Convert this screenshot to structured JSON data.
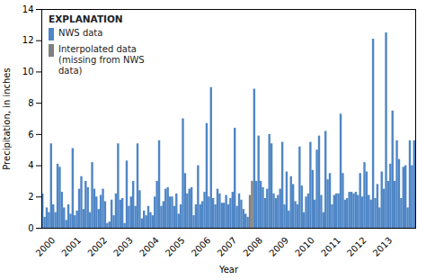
{
  "chart_data": {
    "type": "bar",
    "xlabel": "Year",
    "ylabel": "Precipitation, in inches",
    "ylim": [
      0,
      14
    ],
    "yticks": [
      0,
      2,
      4,
      6,
      8,
      10,
      12,
      14
    ],
    "grid": false,
    "legend": "upper left",
    "legend_title": "EXPLANATION",
    "categories": [
      null,
      null,
      null,
      null,
      null,
      "2000",
      null,
      null,
      null,
      null,
      null,
      null,
      null,
      null,
      null,
      null,
      null,
      "2001",
      null,
      null,
      null,
      null,
      null,
      null,
      null,
      null,
      null,
      null,
      null,
      "2002",
      null,
      null,
      null,
      null,
      null,
      null,
      null,
      null,
      null,
      null,
      null,
      "2003",
      null,
      null,
      null,
      null,
      null,
      null,
      null,
      null,
      null,
      null,
      null,
      "2004",
      null,
      null,
      null,
      null,
      null,
      null,
      null,
      null,
      null,
      null,
      null,
      "2005",
      null,
      null,
      null,
      null,
      null,
      null,
      null,
      null,
      null,
      null,
      null,
      "2006",
      null,
      null,
      null,
      null,
      null,
      null,
      null,
      null,
      null,
      null,
      null,
      "2007",
      null,
      null,
      null,
      null,
      null,
      null,
      null,
      null,
      null,
      null,
      null,
      "2008",
      null,
      null,
      null,
      null,
      null,
      null,
      null,
      null,
      null,
      null,
      null,
      "2009",
      null,
      null,
      null,
      null,
      null,
      null,
      null,
      null,
      null,
      null,
      null,
      "2010",
      null,
      null,
      null,
      null,
      null,
      null,
      null,
      null,
      null,
      null,
      null,
      "2011",
      null,
      null,
      null,
      null,
      null,
      null,
      null,
      null,
      null,
      null,
      null,
      "2012",
      null,
      null,
      null,
      null,
      null,
      null,
      null,
      null,
      null,
      null,
      null,
      "2013",
      null,
      null,
      null,
      null,
      null,
      null,
      null,
      null,
      null,
      null,
      null
    ],
    "series": [
      {
        "name": "NWS data",
        "color": "#4f86c6",
        "values": [
          2.2,
          0.7,
          1.3,
          1.0,
          5.4,
          1.5,
          1.0,
          4.1,
          3.9,
          2.3,
          1.3,
          0.5,
          1.5,
          0.9,
          5.1,
          0.8,
          1.1,
          2.5,
          3.3,
          1.2,
          3.0,
          2.6,
          1.0,
          4.2,
          2.5,
          2.0,
          1.2,
          2.1,
          2.5,
          1.7,
          0.3,
          0.4,
          1.8,
          0.8,
          2.2,
          5.4,
          1.8,
          1.9,
          0.3,
          4.3,
          1.4,
          2.0,
          3.0,
          1.4,
          5.4,
          2.4,
          0.6,
          1.1,
          0.8,
          1.4,
          1.0,
          0.8,
          2.0,
          3.0,
          5.6,
          1.4,
          1.7,
          2.5,
          2.6,
          2.0,
          2.0,
          1.4,
          2.2,
          0.9,
          1.5,
          7.0,
          3.5,
          2.2,
          2.5,
          2.6,
          0.8,
          1.5,
          4.0,
          1.5,
          1.7,
          2.3,
          6.7,
          2.0,
          9.0,
          1.9,
          1.5,
          2.5,
          2.2,
          1.6,
          1.6,
          2.1,
          1.5,
          1.9,
          2.3,
          6.4,
          1.4,
          2.2,
          1.8,
          1.2,
          0.9,
          0.7,
          null,
          null,
          8.9,
          3.0,
          5.9,
          3.0,
          2.6,
          1.9,
          2.5,
          6.0,
          5.4,
          2.2,
          1.9,
          2.1,
          2.5,
          5.5,
          1.5,
          3.6,
          1.1,
          3.3,
          2.8,
          1.7,
          1.5,
          5.2,
          2.7,
          1.0,
          2.0,
          2.2,
          5.5,
          3.7,
          1.8,
          5.0,
          5.9,
          2.1,
          1.0,
          6.2,
          3.1,
          3.5,
          1.5,
          2.1,
          2.2,
          2.2,
          7.3,
          3.5,
          1.8,
          1.9,
          2.3,
          2.3,
          2.2,
          2.3,
          2.1,
          3.5,
          2.0,
          4.2,
          3.6,
          2.1,
          1.8,
          12.1,
          1.9,
          2.8,
          1.3,
          3.6,
          2.5,
          12.5,
          3.0,
          4.1,
          7.5,
          3.0,
          5.6,
          4.4,
          1.9,
          3.9,
          4.0,
          1.3,
          5.6,
          4.0,
          5.6
        ]
      },
      {
        "name": "Interpolated data\n(missing from NWS\ndata)",
        "color": "#808080",
        "values": [
          null,
          null,
          null,
          null,
          null,
          null,
          null,
          null,
          null,
          null,
          null,
          null,
          null,
          null,
          null,
          null,
          null,
          null,
          null,
          null,
          null,
          null,
          null,
          null,
          null,
          null,
          null,
          null,
          null,
          null,
          null,
          null,
          null,
          null,
          null,
          null,
          null,
          null,
          null,
          null,
          null,
          null,
          null,
          null,
          null,
          null,
          null,
          null,
          null,
          null,
          null,
          null,
          null,
          null,
          null,
          null,
          null,
          null,
          null,
          null,
          null,
          null,
          null,
          null,
          null,
          null,
          null,
          null,
          null,
          null,
          null,
          null,
          null,
          null,
          null,
          null,
          null,
          null,
          null,
          null,
          null,
          null,
          null,
          null,
          null,
          null,
          null,
          null,
          null,
          null,
          null,
          null,
          null,
          null,
          null,
          null,
          2.1,
          3.0,
          null,
          null,
          null,
          null,
          null,
          null,
          null,
          null,
          null,
          null,
          null,
          null,
          null,
          null,
          null,
          null,
          null,
          null,
          null,
          null,
          null,
          null,
          null,
          null,
          null,
          null,
          null,
          null,
          null,
          null,
          null,
          null,
          null,
          null,
          null,
          null,
          null,
          null,
          null,
          null,
          null,
          null,
          null,
          null,
          null,
          null,
          null,
          null,
          null,
          null,
          null,
          null,
          null,
          null,
          null,
          null,
          null,
          null,
          null,
          null,
          null,
          null,
          null,
          null,
          null,
          null,
          null,
          null,
          null,
          null,
          null,
          null,
          null,
          null,
          null
        ]
      }
    ]
  }
}
